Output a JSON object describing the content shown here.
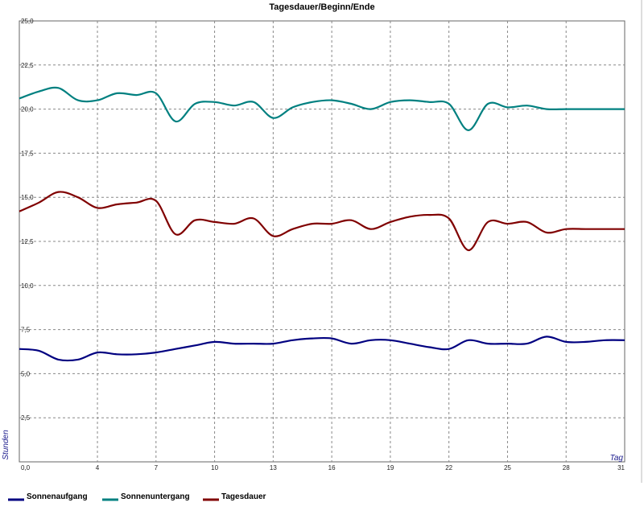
{
  "chart_data": {
    "type": "line",
    "title": "Tagesdauer/Beginn/Ende",
    "xlabel": "Tag",
    "ylabel": "Stunden",
    "xlim": [
      0,
      31
    ],
    "ylim": [
      0,
      25
    ],
    "x_ticks": [
      "0,0",
      "4",
      "7",
      "10",
      "13",
      "16",
      "19",
      "22",
      "25",
      "28",
      "31"
    ],
    "y_ticks": [
      "2,5",
      "5,0",
      "7,5",
      "10,0",
      "12,5",
      "15,0",
      "17,5",
      "20,0",
      "22,5",
      "25,0"
    ],
    "grid": true,
    "legend_position": "bottom-left",
    "x": [
      0,
      1,
      2,
      3,
      4,
      5,
      6,
      7,
      8,
      9,
      10,
      11,
      12,
      13,
      14,
      15,
      16,
      17,
      18,
      19,
      20,
      21,
      22,
      23,
      24,
      25,
      26,
      27,
      28,
      29,
      30,
      31
    ],
    "series": [
      {
        "name": "Sonnenaufgang",
        "color": "#000080",
        "values": [
          6.4,
          6.3,
          5.8,
          5.8,
          6.2,
          6.1,
          6.1,
          6.2,
          6.4,
          6.6,
          6.8,
          6.7,
          6.7,
          6.7,
          6.9,
          7.0,
          7.0,
          6.7,
          6.9,
          6.9,
          6.7,
          6.5,
          6.4,
          6.9,
          6.7,
          6.7,
          6.7,
          7.1,
          6.8,
          6.8,
          6.9,
          6.9
        ]
      },
      {
        "name": "Sonnenuntergang",
        "color": "#008080",
        "values": [
          20.6,
          21.0,
          21.2,
          20.5,
          20.5,
          20.9,
          20.8,
          20.9,
          19.3,
          20.3,
          20.4,
          20.2,
          20.4,
          19.5,
          20.1,
          20.4,
          20.5,
          20.3,
          20.0,
          20.4,
          20.5,
          20.4,
          20.3,
          18.8,
          20.3,
          20.1,
          20.2,
          20.0,
          20.0,
          20.0,
          20.0,
          20.0
        ]
      },
      {
        "name": "Tagesdauer",
        "color": "#800000",
        "values": [
          14.2,
          14.7,
          15.3,
          15.0,
          14.4,
          14.6,
          14.7,
          14.8,
          12.9,
          13.7,
          13.6,
          13.5,
          13.8,
          12.8,
          13.2,
          13.5,
          13.5,
          13.7,
          13.2,
          13.6,
          13.9,
          14.0,
          13.8,
          12.0,
          13.6,
          13.5,
          13.6,
          13.0,
          13.2,
          13.2,
          13.2,
          13.2
        ]
      }
    ]
  }
}
